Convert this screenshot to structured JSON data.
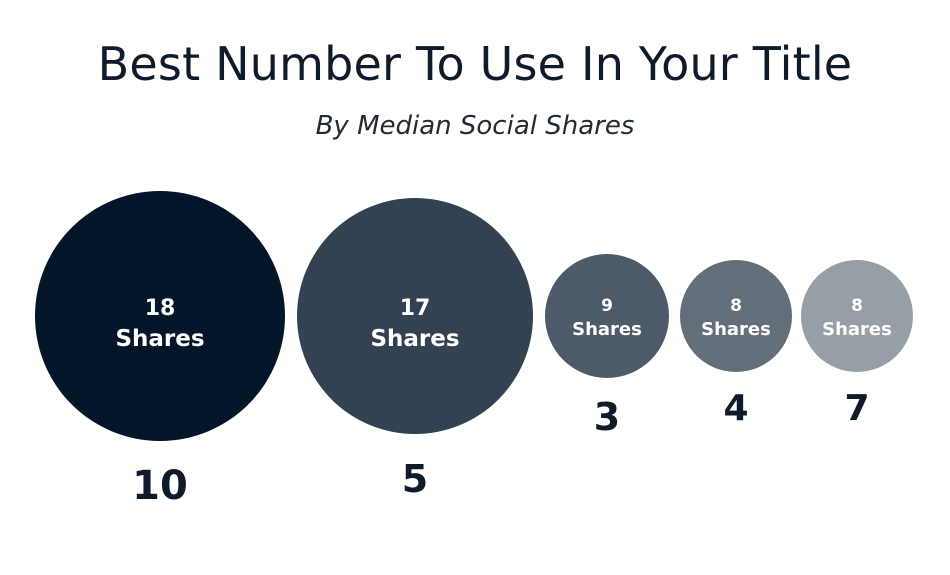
{
  "chart_data": {
    "type": "bubble",
    "title": "Best Number To Use In Your Title",
    "subtitle": "By Median Social Shares",
    "unit_label": "Shares",
    "categories": [
      "10",
      "5",
      "3",
      "4",
      "7"
    ],
    "values": [
      18,
      17,
      9,
      8,
      8
    ],
    "colors": [
      "#031528",
      "#324253",
      "#4d5a69",
      "#636e7b",
      "#969ea6"
    ],
    "text_color": "#ffffff",
    "label_color": "#0f1a2a"
  }
}
